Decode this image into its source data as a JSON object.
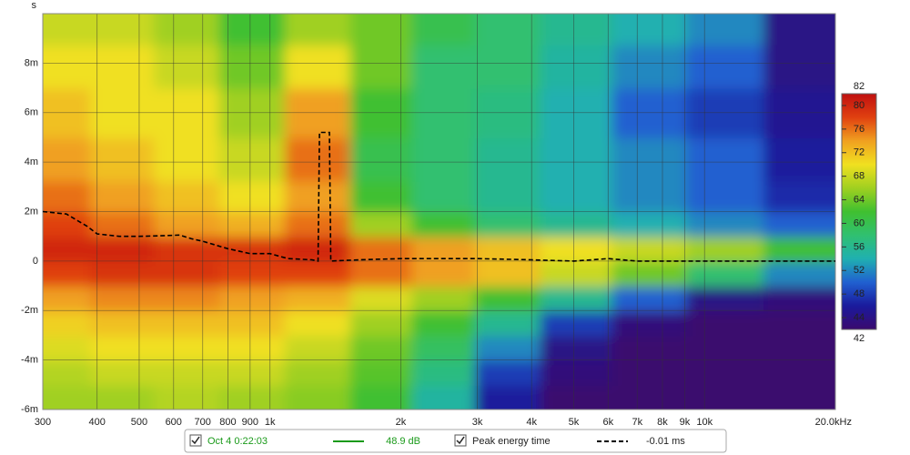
{
  "chart_data": {
    "type": "spectrogram",
    "ylabel": "s",
    "xscale": "log",
    "xlim": [
      300,
      20000
    ],
    "ylim": [
      -0.006,
      0.01
    ],
    "xticks": [
      300,
      400,
      500,
      600,
      700,
      800,
      900,
      {
        "value": 1000,
        "label": "1k"
      },
      {
        "value": 2000,
        "label": "2k"
      },
      {
        "value": 3000,
        "label": "3k"
      },
      {
        "value": 4000,
        "label": "4k"
      },
      {
        "value": 5000,
        "label": "5k"
      },
      {
        "value": 6000,
        "label": "6k"
      },
      {
        "value": 7000,
        "label": "7k"
      },
      {
        "value": 8000,
        "label": "8k"
      },
      {
        "value": 9000,
        "label": "9k"
      },
      {
        "value": 10000,
        "label": "10k"
      },
      {
        "value": 20000,
        "label": "20.0kHz"
      }
    ],
    "yticks": [
      {
        "value": -0.006,
        "label": "-6m"
      },
      {
        "value": -0.004,
        "label": "-4m"
      },
      {
        "value": -0.002,
        "label": "-2m"
      },
      0,
      {
        "value": 0.002,
        "label": "2m"
      },
      {
        "value": 0.004,
        "label": "4m"
      },
      {
        "value": 0.006,
        "label": "6m"
      },
      {
        "value": 0.008,
        "label": "8m"
      }
    ],
    "grid": true,
    "clim": [
      42,
      82
    ],
    "cticks": [
      44,
      48,
      52,
      56,
      60,
      64,
      68,
      72,
      76,
      80
    ],
    "colormap": [
      "#3a0a6e",
      "#1a1a9c",
      "#2060d0",
      "#20b0b0",
      "#30c070",
      "#40c030",
      "#a0d020",
      "#f0e020",
      "#f0a020",
      "#e04010",
      "#c01010"
    ],
    "z_x": [
      330,
      450,
      650,
      900,
      1300,
      1800,
      2500,
      3500,
      5000,
      7500,
      11000,
      17000
    ],
    "z_y": [
      -0.0055,
      -0.0045,
      -0.0035,
      -0.0025,
      -0.0015,
      -0.0005,
      0.0005,
      0.0015,
      0.0025,
      0.004,
      0.006,
      0.008,
      0.0095
    ],
    "z": [
      [
        66,
        66,
        67,
        66,
        65,
        62,
        55,
        46,
        42,
        42,
        42,
        42
      ],
      [
        67,
        68,
        68,
        68,
        66,
        63,
        57,
        48,
        43,
        42,
        42,
        42
      ],
      [
        69,
        70,
        70,
        70,
        68,
        64,
        59,
        52,
        44,
        42,
        42,
        42
      ],
      [
        71,
        72,
        72,
        72,
        70,
        66,
        62,
        56,
        48,
        43,
        42,
        42
      ],
      [
        74,
        75,
        75,
        74,
        73,
        69,
        66,
        62,
        56,
        50,
        44,
        43
      ],
      [
        78,
        79,
        79,
        78,
        78,
        76,
        74,
        72,
        68,
        64,
        58,
        52
      ],
      [
        80,
        80,
        79,
        79,
        80,
        76,
        74,
        72,
        70,
        68,
        66,
        62
      ],
      [
        78,
        76,
        74,
        73,
        76,
        66,
        62,
        58,
        56,
        54,
        52,
        50
      ],
      [
        76,
        74,
        72,
        70,
        74,
        62,
        58,
        56,
        54,
        52,
        50,
        47
      ],
      [
        74,
        72,
        70,
        68,
        76,
        60,
        58,
        56,
        54,
        52,
        50,
        46
      ],
      [
        72,
        70,
        70,
        66,
        74,
        62,
        58,
        57,
        54,
        50,
        48,
        45
      ],
      [
        70,
        70,
        68,
        64,
        70,
        64,
        58,
        58,
        55,
        52,
        50,
        44
      ],
      [
        68,
        68,
        66,
        62,
        66,
        64,
        60,
        58,
        56,
        54,
        52,
        44
      ]
    ],
    "series": [
      {
        "name": "Peak energy time",
        "color": "#000000",
        "x": [
          300,
          340,
          380,
          400,
          450,
          500,
          560,
          620,
          660,
          700,
          800,
          900,
          1000,
          1100,
          1250,
          1290,
          1300,
          1370,
          1380,
          1600,
          2000,
          2500,
          3000,
          4000,
          5000,
          6000,
          7000,
          8000,
          10000,
          15000,
          20000
        ],
        "values": [
          0.002,
          0.0019,
          0.0014,
          0.0011,
          0.001,
          0.001,
          0.00102,
          0.00105,
          0.0009,
          0.0008,
          0.0005,
          0.0003,
          0.0003,
          0.0001,
          5e-05,
          0,
          0.0052,
          0.0052,
          0,
          5e-05,
          0.0001,
          0.0001,
          0.0001,
          5e-05,
          0,
          0.0001,
          0,
          0,
          0,
          0,
          0
        ]
      }
    ],
    "legend": [
      {
        "name": "Oct 4 0:22:03",
        "readout": "48.9 dB",
        "color": "#1a9a1a"
      },
      {
        "name": "Peak energy time",
        "readout": "-0.01 ms",
        "color": "#000000"
      }
    ]
  }
}
